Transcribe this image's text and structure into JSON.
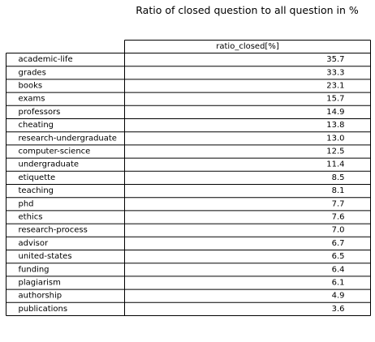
{
  "chart_data": {
    "type": "table",
    "title": "Ratio of closed question to all question in %",
    "column_header": "ratio_closed[%]",
    "rows": [
      {
        "label": "academic-life",
        "value": "35.7"
      },
      {
        "label": "grades",
        "value": "33.3"
      },
      {
        "label": "books",
        "value": "23.1"
      },
      {
        "label": "exams",
        "value": "15.7"
      },
      {
        "label": "professors",
        "value": "14.9"
      },
      {
        "label": "cheating",
        "value": "13.8"
      },
      {
        "label": "research-undergraduate",
        "value": "13.0"
      },
      {
        "label": "computer-science",
        "value": "12.5"
      },
      {
        "label": "undergraduate",
        "value": "11.4"
      },
      {
        "label": "etiquette",
        "value": "8.5"
      },
      {
        "label": "teaching",
        "value": "8.1"
      },
      {
        "label": "phd",
        "value": "7.7"
      },
      {
        "label": "ethics",
        "value": "7.6"
      },
      {
        "label": "research-process",
        "value": "7.0"
      },
      {
        "label": "advisor",
        "value": "6.7"
      },
      {
        "label": "united-states",
        "value": "6.5"
      },
      {
        "label": "funding",
        "value": "6.4"
      },
      {
        "label": "plagiarism",
        "value": "6.1"
      },
      {
        "label": "authorship",
        "value": "4.9"
      },
      {
        "label": "publications",
        "value": "3.6"
      }
    ]
  }
}
